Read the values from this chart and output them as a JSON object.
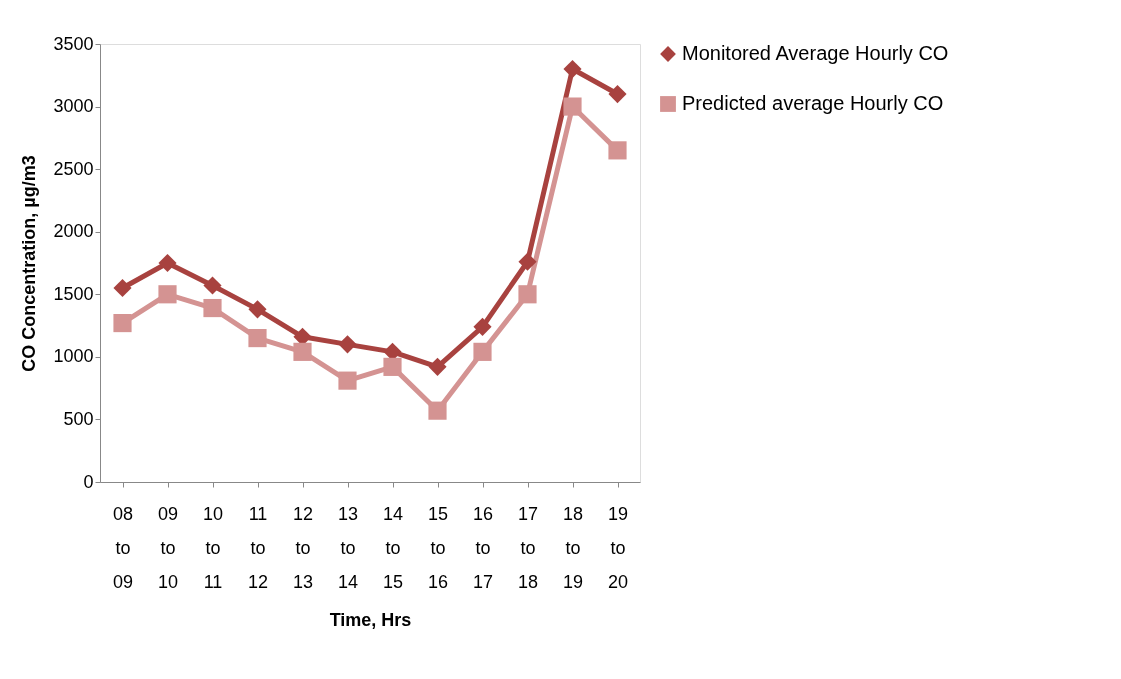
{
  "chart_data": {
    "type": "line",
    "xlabel": "Time, Hrs",
    "ylabel": "CO Concentration, µg/m3",
    "categories": [
      "08 to 09",
      "09 to 10",
      "10 to 11",
      "11 to 12",
      "12 to 13",
      "13 to 14",
      "14 to 15",
      "15 to 16",
      "16 to 17",
      "17 to 18",
      "18 to 19",
      "19 to 20"
    ],
    "series": [
      {
        "name": "Monitored Average Hourly CO",
        "color": "#a8423f",
        "marker": "diamond",
        "values": [
          1550,
          1750,
          1570,
          1380,
          1160,
          1100,
          1040,
          920,
          1240,
          1760,
          3300,
          3100
        ]
      },
      {
        "name": "Predicted average Hourly CO",
        "color": "#d49392",
        "marker": "square",
        "values": [
          1270,
          1500,
          1390,
          1150,
          1040,
          810,
          920,
          570,
          1040,
          1500,
          3000,
          2650
        ]
      }
    ],
    "ylim": [
      0,
      3500
    ],
    "yticks": [
      0,
      500,
      1000,
      1500,
      2000,
      2500,
      3000,
      3500
    ],
    "grid": false,
    "legend": "right",
    "line_style": "solid"
  }
}
